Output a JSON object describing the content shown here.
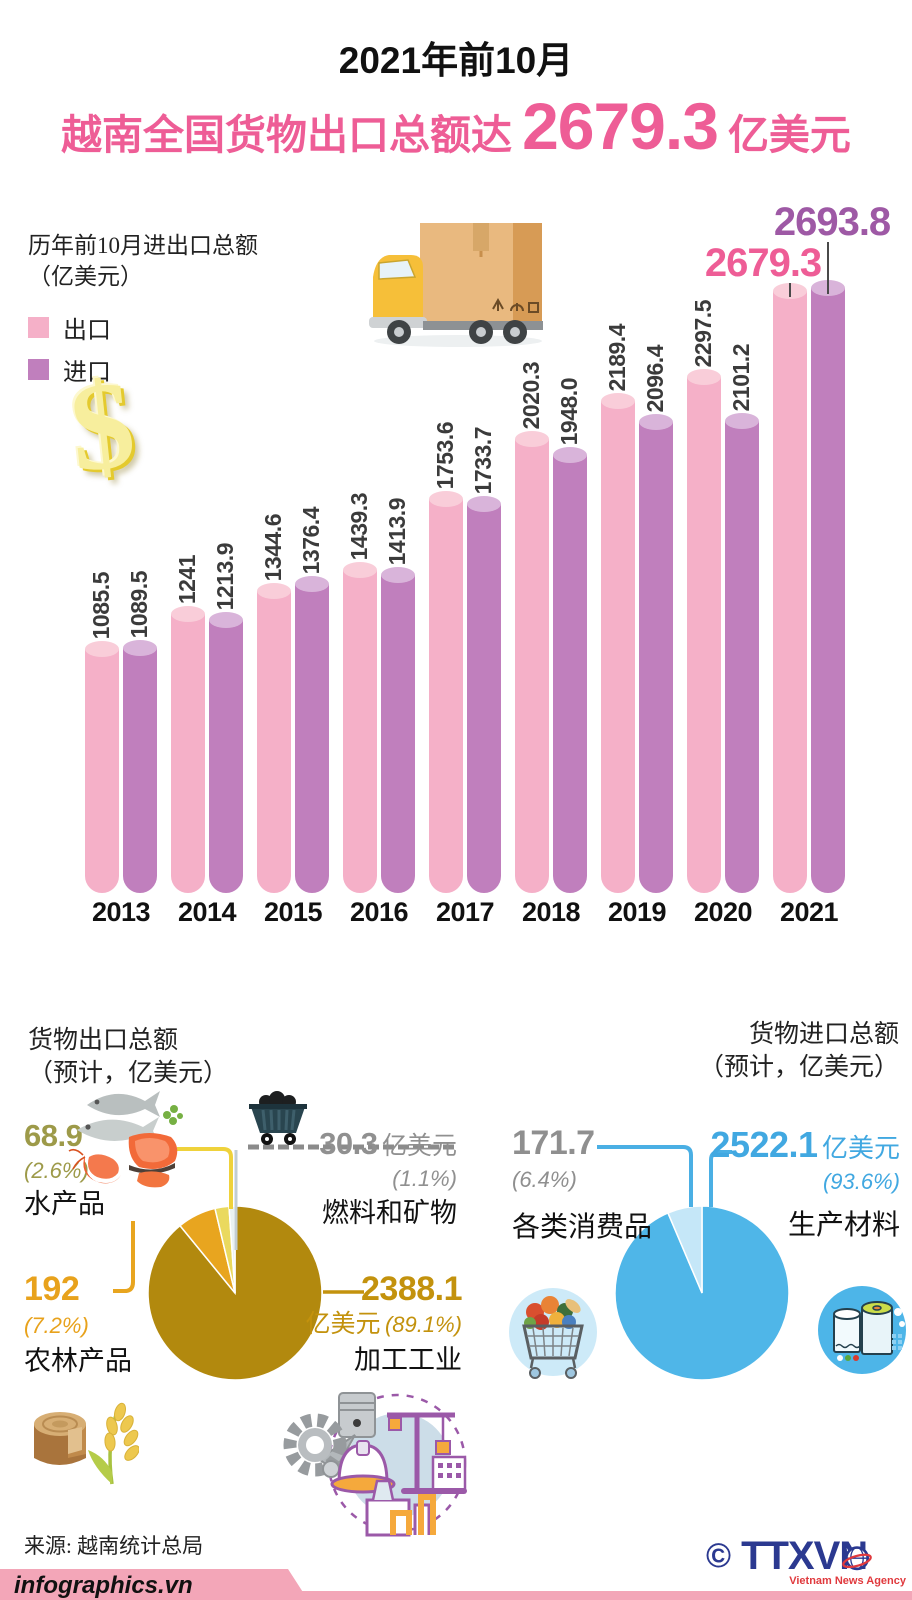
{
  "header": {
    "subtitle": "2021年前10月",
    "title_prefix": "越南全国货物出口总额达",
    "title_value": "2679.3",
    "title_suffix": "亿美元"
  },
  "bar_section": {
    "caption_line1": "历年前10月进出口总额",
    "caption_line2": "（亿美元）",
    "legend": [
      {
        "label": "出口",
        "color": "#f5b0c8"
      },
      {
        "label": "进口",
        "color": "#c07fbd"
      }
    ]
  },
  "chart_data": [
    {
      "type": "bar",
      "title": "历年前10月进出口总额（亿美元）",
      "categories": [
        "2013",
        "2014",
        "2015",
        "2016",
        "2017",
        "2018",
        "2019",
        "2020",
        "2021"
      ],
      "series": [
        {
          "name": "出口",
          "color": "#f5b0c8",
          "cap_color": "#f9cdd9",
          "values": [
            1085.5,
            1241,
            1344.6,
            1439.3,
            1753.6,
            2020.3,
            2189.4,
            2297.5,
            2679.3
          ],
          "labels": [
            "1085.5",
            "1241",
            "1344.6",
            "1439.3",
            "1753.6",
            "2020.3",
            "2189.4",
            "2297.5",
            "2679.3"
          ]
        },
        {
          "name": "进口",
          "color": "#c07fbd",
          "cap_color": "#d9b4da",
          "values": [
            1089.5,
            1213.9,
            1376.4,
            1413.9,
            1733.7,
            1948.0,
            2096.4,
            2101.2,
            2693.8
          ],
          "labels": [
            "1089.5",
            "1213.9",
            "1376.4",
            "1413.9",
            "1733.7",
            "1948.0",
            "2096.4",
            "2101.2",
            "2693.8"
          ]
        }
      ],
      "highlight": {
        "index": 8,
        "colors": [
          "#ee5d96",
          "#9e59a5"
        ]
      },
      "ylim": [
        0,
        2700
      ],
      "grid": false,
      "legend_position": "top-left"
    },
    {
      "type": "pie",
      "title": "货物出口总额（预计，亿美元）",
      "slices": [
        {
          "label": "加工工业",
          "value": 2388.1,
          "pct": 89.1,
          "color": "#b2890e"
        },
        {
          "label": "农林产品",
          "value": 192,
          "pct": 7.2,
          "color": "#e8a51f"
        },
        {
          "label": "水产品",
          "value": 68.9,
          "pct": 2.6,
          "color": "#ead95e"
        },
        {
          "label": "燃料和矿物",
          "value": 30.3,
          "pct": 1.1,
          "color": "#eaf2f3"
        }
      ],
      "start_angle_deg": -90,
      "direction": "clockwise"
    },
    {
      "type": "pie",
      "title": "货物进口总额（预计，亿美元）",
      "slices": [
        {
          "label": "生产材料",
          "value": 2522.1,
          "pct": 93.6,
          "color": "#4fb6e8"
        },
        {
          "label": "各类消费品",
          "value": 171.7,
          "pct": 6.4,
          "color": "#c5e7f8"
        }
      ],
      "start_angle_deg": -90,
      "direction": "clockwise"
    }
  ],
  "export_section": {
    "heading_line1": "货物出口总额",
    "heading_line2": "（预计，亿美元）",
    "aquatic": {
      "value": "68.9",
      "pct": "(2.6%)",
      "name": "水产品"
    },
    "fuel": {
      "value": "30.3",
      "unit": "亿美元",
      "pct": "(1.1%)",
      "name": "燃料和矿物"
    },
    "agri": {
      "value": "192",
      "pct": "(7.2%)",
      "name": "农林产品"
    },
    "processing": {
      "value": "2388.1",
      "unit": "亿美元",
      "pct": "(89.1%)",
      "name": "加工工业"
    }
  },
  "import_section": {
    "heading_line1": "货物进口总额",
    "heading_line2": "（预计，亿美元）",
    "consumer": {
      "value": "171.7",
      "pct": "(6.4%)",
      "name": "各类消费品"
    },
    "materials": {
      "value": "2522.1",
      "unit": "亿美元",
      "pct": "(93.6%)",
      "name": "生产材料"
    }
  },
  "footer": {
    "source": "来源: 越南统计总局",
    "brand": "infographics.vn",
    "copyright": "©",
    "agency": "TTXVN",
    "agency_subtitle": "Vietnam News Agency"
  },
  "colors": {
    "title_pink": "#ee5d96",
    "highlight_purple": "#9e59a5",
    "bar_value_text": "#3b3b3b",
    "footer_pink": "#f3a6b8",
    "agency_blue": "#2b3990",
    "agency_red": "#e0393d",
    "gray_label": "#8f8f8f",
    "olive_label": "#9d9a49",
    "orange_label": "#e8a21c",
    "gold_label": "#c3920d",
    "blue_label": "#41a8e1"
  }
}
